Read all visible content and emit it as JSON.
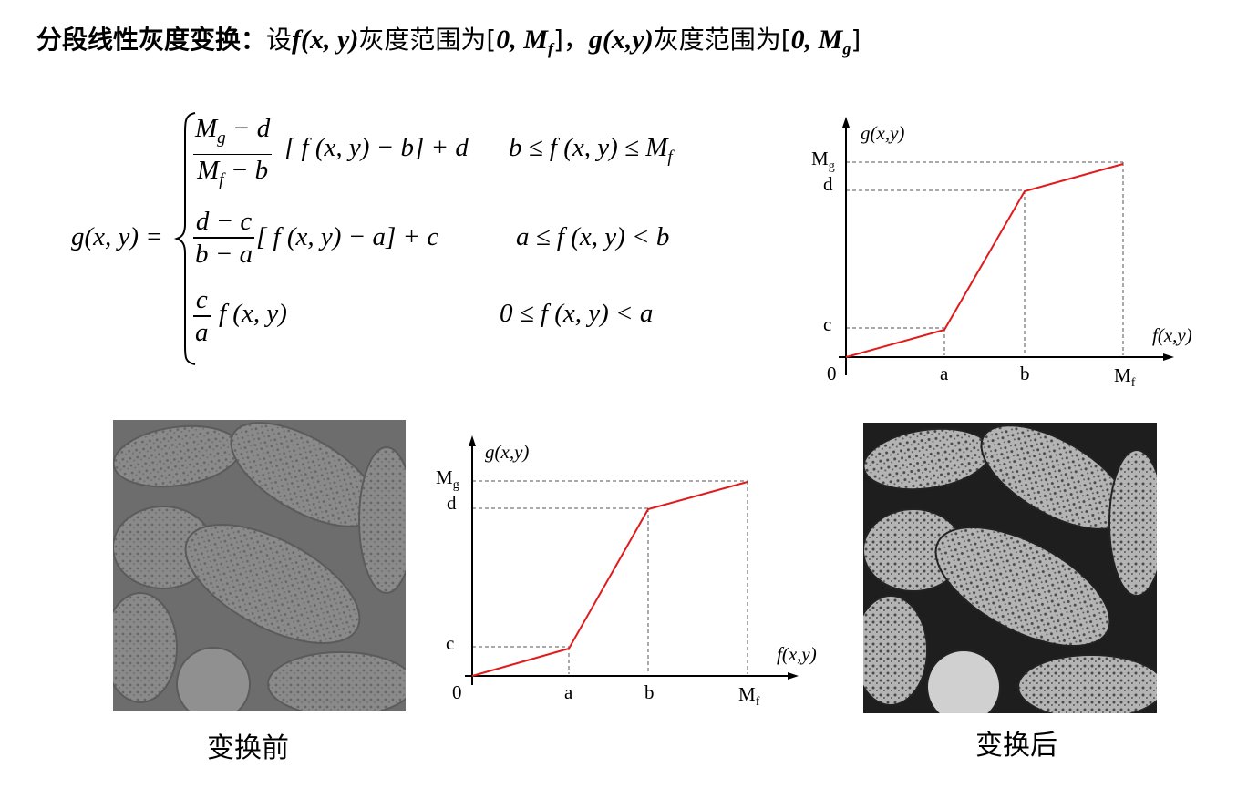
{
  "heading": {
    "title": "分段线性灰度变换：",
    "set": "设",
    "f_expr": "f(x, y)",
    "range_text_1": "灰度范围为",
    "range1_open": "[",
    "range1_zero": "0, M",
    "range1_sub": "f",
    "range1_close": "]",
    "sep": "，",
    "g_expr": "g(x,y)",
    "range_text_2": "灰度范围为",
    "range2_open": "[",
    "range2_zero": "0, M",
    "range2_sub": "g",
    "range2_close": "]"
  },
  "formula": {
    "lhs": "g(x, y) =",
    "case1": {
      "num_main": "M",
      "num_sub": "g",
      "num_rest": " − d",
      "den_main": "M",
      "den_sub": "f",
      "den_rest": " − b",
      "expr": "[ f (x, y) − b] + d",
      "condition": "b ≤ f (x, y) ≤ M",
      "condition_sub": "f"
    },
    "case2": {
      "num": "d − c",
      "den": "b − a",
      "expr": "[ f (x, y) − a] + c",
      "condition": "a ≤ f (x, y) < b"
    },
    "case3": {
      "num": "c",
      "den": "a",
      "expr": "f (x, y)",
      "condition": "0 ≤ f (x, y) < a"
    }
  },
  "graph": {
    "y_axis_label": "g(x,y)",
    "x_axis_label": "f(x,y)",
    "mg_main": "M",
    "mg_sub": "g",
    "d_label": "d",
    "c_label": "c",
    "origin_label": "0",
    "a_label": "a",
    "b_label": "b",
    "mf_main": "M",
    "mf_sub": "f",
    "line_color": "#e11b1b"
  },
  "captions": {
    "before": "变换前",
    "after": "变换后"
  }
}
